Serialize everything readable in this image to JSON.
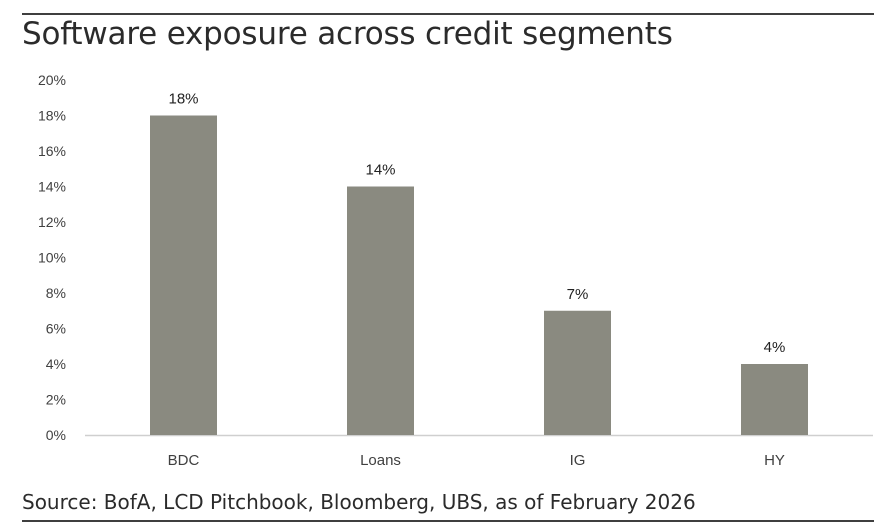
{
  "title": "Software exposure across credit segments",
  "source": "Source: BofA, LCD Pitchbook, Bloomberg, UBS, as of February 2026",
  "colors": {
    "bar": "#8a8a80",
    "axis": "#cfcfcf",
    "text": "#404040"
  },
  "chart_data": {
    "type": "bar",
    "categories": [
      "BDC",
      "Loans",
      "IG",
      "HY"
    ],
    "values": [
      18,
      14,
      7,
      4
    ],
    "data_labels": [
      "18%",
      "14%",
      "7%",
      "4%"
    ],
    "ylim": [
      0,
      20
    ],
    "yticks": [
      "0%",
      "2%",
      "4%",
      "6%",
      "8%",
      "10%",
      "12%",
      "14%",
      "16%",
      "18%",
      "20%"
    ],
    "grid": false,
    "legend": "none"
  }
}
